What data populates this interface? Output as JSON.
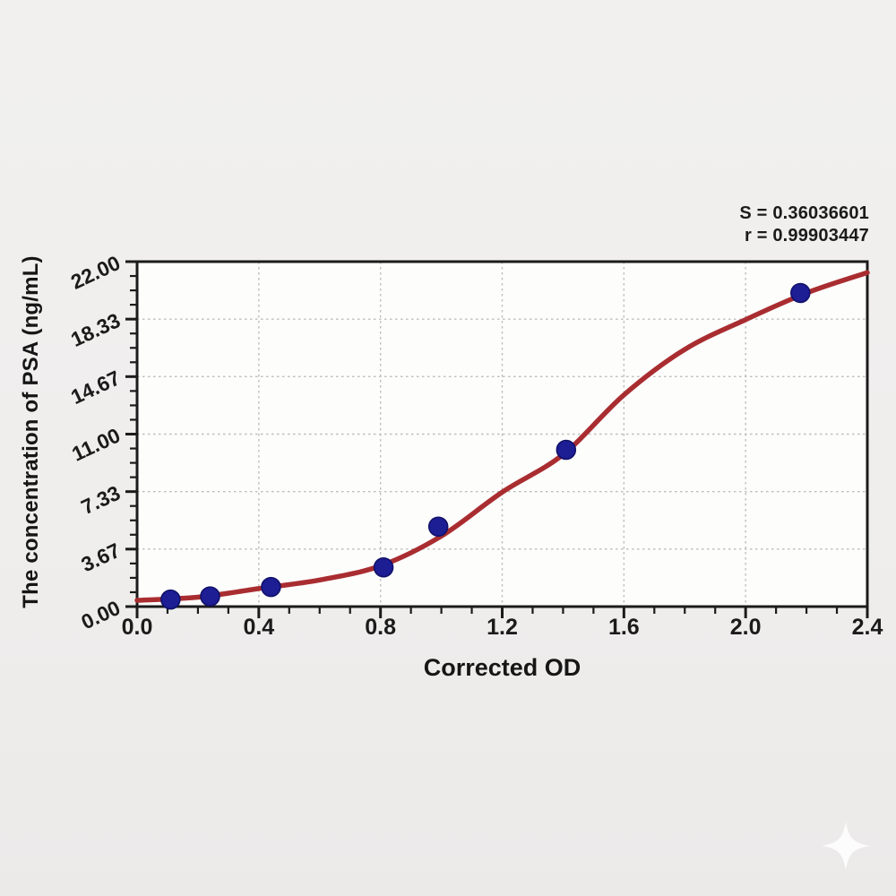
{
  "window": {
    "background": "#efeeed",
    "plot_background": "#fdfdfc"
  },
  "chart_data": {
    "type": "scatter",
    "title": "",
    "xlabel": "Corrected OD",
    "ylabel": "The concentration of PSA (ng/mL)",
    "xlim": [
      0,
      2.4
    ],
    "ylim": [
      0,
      22
    ],
    "x_major_ticks": [
      0,
      0.4,
      0.8,
      1.2,
      1.6,
      2.0,
      2.4
    ],
    "xtick_labels": [
      "0.0",
      "0.4",
      "0.8",
      "1.2",
      "1.6",
      "2.0",
      "2.4"
    ],
    "y_major_ticks": [
      0,
      3.667,
      7.333,
      11,
      14.667,
      18.333,
      22
    ],
    "ytick_labels": [
      "0.00",
      "3.67",
      "7.33",
      "11.00",
      "14.67",
      "18.33",
      "22.00"
    ],
    "x_minor_step": 0.1,
    "y_minor_divisions": 4,
    "grid": "major-dotted",
    "legend": "none",
    "point_color": "#1d1d94",
    "point_edge_color": "#101068",
    "frame_color": "#1b1b1b",
    "points": [
      {
        "od": 0.11,
        "conc": 0.45
      },
      {
        "od": 0.24,
        "conc": 0.65
      },
      {
        "od": 0.44,
        "conc": 1.25
      },
      {
        "od": 0.81,
        "conc": 2.5
      },
      {
        "od": 0.99,
        "conc": 5.1
      },
      {
        "od": 1.41,
        "conc": 10.0
      },
      {
        "od": 2.18,
        "conc": 20.0
      }
    ],
    "curve": {
      "name": "fitted-standard-curve",
      "color": "#a92d30",
      "samples": [
        [
          0,
          0.4
        ],
        [
          0.2,
          0.6
        ],
        [
          0.4,
          1.15
        ],
        [
          0.6,
          1.7
        ],
        [
          0.8,
          2.6
        ],
        [
          1.0,
          4.5
        ],
        [
          1.2,
          7.3
        ],
        [
          1.4,
          9.7
        ],
        [
          1.6,
          13.5
        ],
        [
          1.8,
          16.4
        ],
        [
          2.0,
          18.3
        ],
        [
          2.2,
          20.0
        ],
        [
          2.4,
          21.3
        ]
      ]
    },
    "annotations": [
      "S = 0.36036601",
      "r = 0.99903447"
    ]
  },
  "watermark": {
    "icon": "four-point-star",
    "color": "#ffffff"
  }
}
